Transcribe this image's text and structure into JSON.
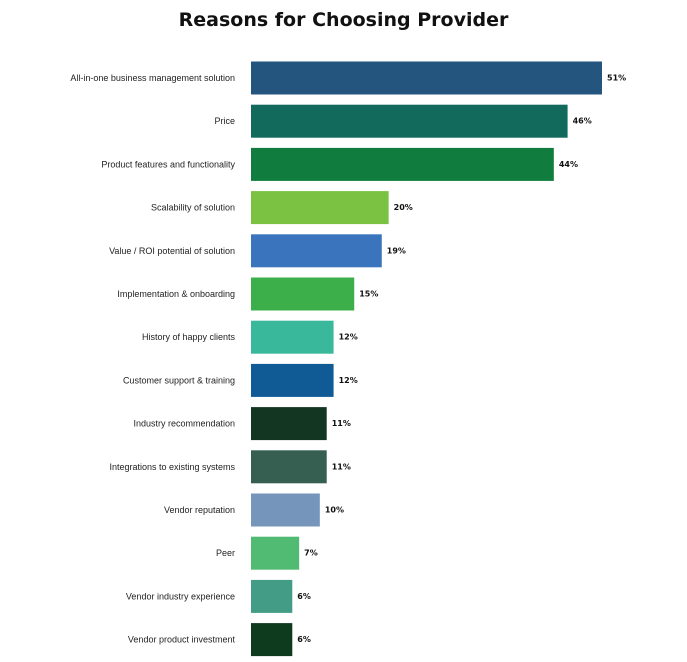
{
  "chart_data": {
    "type": "bar",
    "orientation": "horizontal",
    "title": "Reasons for Choosing Provider",
    "xlabel": "",
    "ylabel": "",
    "xlim": [
      0,
      51
    ],
    "grid": false,
    "legend": "none",
    "categories": [
      "All-in-one business management solution",
      "Price",
      "Product features and functionality",
      "Scalability of solution",
      "Value / ROI potential of solution",
      "Implementation & onboarding",
      "History of happy clients",
      "Customer support & training",
      "Industry recommendation",
      "Integrations to existing systems",
      "Vendor reputation",
      "Peer",
      "Vendor industry experience",
      "Vendor product investment"
    ],
    "values": [
      51,
      46,
      44,
      20,
      19,
      15,
      12,
      12,
      11,
      11,
      10,
      7,
      6,
      6
    ],
    "value_labels": [
      "51%",
      "46%",
      "44%",
      "20%",
      "19%",
      "15%",
      "12%",
      "12%",
      "11%",
      "11%",
      "10%",
      "7%",
      "6%",
      "6%"
    ],
    "colors": [
      "#24557f",
      "#116a5c",
      "#107d3e",
      "#7bc243",
      "#3a74bd",
      "#3daf4a",
      "#3ab89b",
      "#105a95",
      "#133622",
      "#365e51",
      "#7596ba",
      "#51bb73",
      "#439c85",
      "#0e3a1e"
    ]
  }
}
